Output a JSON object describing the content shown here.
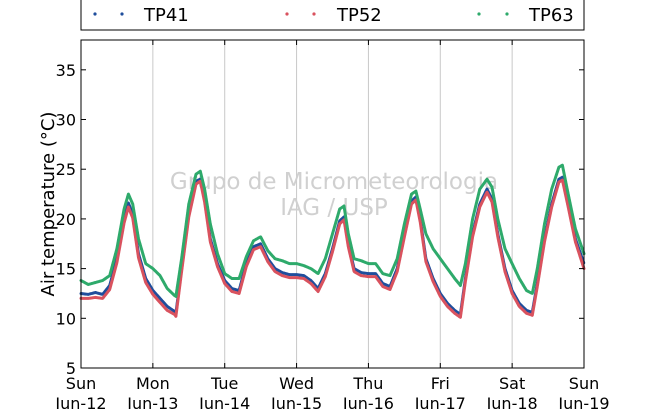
{
  "chart_data": {
    "type": "line",
    "ylabel": "Air temperature (°C)",
    "ylim": [
      5,
      38
    ],
    "yticks": [
      5,
      10,
      15,
      20,
      25,
      30,
      35
    ],
    "xlim": [
      0,
      7
    ],
    "xticks": [
      {
        "x": 0,
        "day": "Sun",
        "date": "Jun-12"
      },
      {
        "x": 1,
        "day": "Mon",
        "date": "Jun-13"
      },
      {
        "x": 2,
        "day": "Tue",
        "date": "Jun-14"
      },
      {
        "x": 3,
        "day": "Wed",
        "date": "Jun-15"
      },
      {
        "x": 4,
        "day": "Thu",
        "date": "Jun-16"
      },
      {
        "x": 5,
        "day": "Fri",
        "date": "Jun-17"
      },
      {
        "x": 6,
        "day": "Sat",
        "date": "Jun-18"
      },
      {
        "x": 7,
        "day": "Sun",
        "date": "Jun-19"
      }
    ],
    "grid": "vertical",
    "legend_position": "top",
    "watermark": [
      "Grupo de Micrometeorologia",
      "IAG / USP"
    ],
    "series": [
      {
        "name": "TP41",
        "color": "#1f4e9c",
        "points": [
          [
            0.0,
            12.5
          ],
          [
            0.1,
            12.4
          ],
          [
            0.2,
            12.6
          ],
          [
            0.3,
            12.4
          ],
          [
            0.4,
            13.3
          ],
          [
            0.5,
            16.0
          ],
          [
            0.6,
            20.0
          ],
          [
            0.66,
            21.6
          ],
          [
            0.72,
            20.5
          ],
          [
            0.8,
            16.5
          ],
          [
            0.9,
            14.0
          ],
          [
            1.0,
            12.8
          ],
          [
            1.1,
            12.0
          ],
          [
            1.2,
            11.2
          ],
          [
            1.3,
            10.7
          ],
          [
            1.32,
            10.5
          ],
          [
            1.4,
            15.0
          ],
          [
            1.5,
            20.5
          ],
          [
            1.6,
            23.8
          ],
          [
            1.66,
            24.0
          ],
          [
            1.72,
            22.0
          ],
          [
            1.8,
            18.0
          ],
          [
            1.9,
            15.5
          ],
          [
            2.0,
            13.8
          ],
          [
            2.1,
            13.0
          ],
          [
            2.2,
            12.8
          ],
          [
            2.3,
            15.5
          ],
          [
            2.4,
            17.2
          ],
          [
            2.5,
            17.5
          ],
          [
            2.6,
            16.0
          ],
          [
            2.7,
            15.0
          ],
          [
            2.8,
            14.6
          ],
          [
            2.9,
            14.4
          ],
          [
            3.0,
            14.4
          ],
          [
            3.1,
            14.3
          ],
          [
            3.2,
            13.8
          ],
          [
            3.3,
            13.0
          ],
          [
            3.4,
            14.5
          ],
          [
            3.5,
            17.0
          ],
          [
            3.6,
            19.8
          ],
          [
            3.66,
            20.2
          ],
          [
            3.72,
            17.5
          ],
          [
            3.8,
            15.0
          ],
          [
            3.9,
            14.6
          ],
          [
            4.0,
            14.5
          ],
          [
            4.1,
            14.5
          ],
          [
            4.2,
            13.5
          ],
          [
            4.3,
            13.2
          ],
          [
            4.4,
            15.0
          ],
          [
            4.5,
            18.5
          ],
          [
            4.6,
            21.8
          ],
          [
            4.66,
            22.2
          ],
          [
            4.72,
            20.0
          ],
          [
            4.8,
            16.0
          ],
          [
            4.9,
            14.0
          ],
          [
            5.0,
            12.5
          ],
          [
            5.1,
            11.5
          ],
          [
            5.2,
            10.8
          ],
          [
            5.28,
            10.4
          ],
          [
            5.35,
            14.0
          ],
          [
            5.45,
            18.5
          ],
          [
            5.55,
            21.5
          ],
          [
            5.65,
            23.0
          ],
          [
            5.72,
            22.0
          ],
          [
            5.8,
            18.5
          ],
          [
            5.9,
            15.0
          ],
          [
            6.0,
            12.8
          ],
          [
            6.1,
            11.5
          ],
          [
            6.2,
            10.8
          ],
          [
            6.28,
            10.6
          ],
          [
            6.35,
            13.5
          ],
          [
            6.45,
            18.0
          ],
          [
            6.55,
            21.5
          ],
          [
            6.65,
            24.0
          ],
          [
            6.7,
            24.2
          ],
          [
            6.78,
            21.5
          ],
          [
            6.88,
            18.0
          ],
          [
            7.0,
            15.5
          ]
        ]
      },
      {
        "name": "TP52",
        "color": "#d9525e",
        "points": [
          [
            0.0,
            12.0
          ],
          [
            0.1,
            12.0
          ],
          [
            0.2,
            12.1
          ],
          [
            0.3,
            12.0
          ],
          [
            0.4,
            12.9
          ],
          [
            0.5,
            15.6
          ],
          [
            0.6,
            19.6
          ],
          [
            0.66,
            21.2
          ],
          [
            0.72,
            20.1
          ],
          [
            0.8,
            16.1
          ],
          [
            0.9,
            13.6
          ],
          [
            1.0,
            12.4
          ],
          [
            1.1,
            11.6
          ],
          [
            1.2,
            10.8
          ],
          [
            1.3,
            10.4
          ],
          [
            1.32,
            10.2
          ],
          [
            1.4,
            14.7
          ],
          [
            1.5,
            20.2
          ],
          [
            1.6,
            23.5
          ],
          [
            1.66,
            23.8
          ],
          [
            1.72,
            21.7
          ],
          [
            1.8,
            17.7
          ],
          [
            1.9,
            15.2
          ],
          [
            2.0,
            13.5
          ],
          [
            2.1,
            12.7
          ],
          [
            2.2,
            12.5
          ],
          [
            2.3,
            15.2
          ],
          [
            2.4,
            16.9
          ],
          [
            2.5,
            17.2
          ],
          [
            2.6,
            15.7
          ],
          [
            2.7,
            14.7
          ],
          [
            2.8,
            14.3
          ],
          [
            2.9,
            14.1
          ],
          [
            3.0,
            14.1
          ],
          [
            3.1,
            14.0
          ],
          [
            3.2,
            13.5
          ],
          [
            3.3,
            12.7
          ],
          [
            3.4,
            14.2
          ],
          [
            3.5,
            16.7
          ],
          [
            3.6,
            19.5
          ],
          [
            3.66,
            19.9
          ],
          [
            3.72,
            17.2
          ],
          [
            3.8,
            14.7
          ],
          [
            3.9,
            14.3
          ],
          [
            4.0,
            14.2
          ],
          [
            4.1,
            14.2
          ],
          [
            4.2,
            13.2
          ],
          [
            4.3,
            12.9
          ],
          [
            4.4,
            14.7
          ],
          [
            4.5,
            18.2
          ],
          [
            4.6,
            21.5
          ],
          [
            4.66,
            21.9
          ],
          [
            4.72,
            19.7
          ],
          [
            4.8,
            15.7
          ],
          [
            4.9,
            13.7
          ],
          [
            5.0,
            12.2
          ],
          [
            5.1,
            11.2
          ],
          [
            5.2,
            10.5
          ],
          [
            5.28,
            10.1
          ],
          [
            5.35,
            13.7
          ],
          [
            5.45,
            18.2
          ],
          [
            5.55,
            21.2
          ],
          [
            5.65,
            22.7
          ],
          [
            5.72,
            21.7
          ],
          [
            5.8,
            18.2
          ],
          [
            5.9,
            14.7
          ],
          [
            6.0,
            12.5
          ],
          [
            6.1,
            11.2
          ],
          [
            6.2,
            10.5
          ],
          [
            6.28,
            10.3
          ],
          [
            6.35,
            13.2
          ],
          [
            6.45,
            17.7
          ],
          [
            6.55,
            21.2
          ],
          [
            6.65,
            23.7
          ],
          [
            6.7,
            23.9
          ],
          [
            6.78,
            21.2
          ],
          [
            6.88,
            17.7
          ],
          [
            7.0,
            15.0
          ]
        ]
      },
      {
        "name": "TP63",
        "color": "#2eaa6b",
        "points": [
          [
            0.0,
            13.8
          ],
          [
            0.1,
            13.4
          ],
          [
            0.2,
            13.6
          ],
          [
            0.3,
            13.8
          ],
          [
            0.4,
            14.3
          ],
          [
            0.5,
            17.0
          ],
          [
            0.6,
            21.0
          ],
          [
            0.66,
            22.5
          ],
          [
            0.72,
            21.5
          ],
          [
            0.8,
            18.0
          ],
          [
            0.9,
            15.5
          ],
          [
            1.0,
            15.0
          ],
          [
            1.1,
            14.3
          ],
          [
            1.2,
            13.0
          ],
          [
            1.3,
            12.3
          ],
          [
            1.32,
            12.2
          ],
          [
            1.4,
            16.0
          ],
          [
            1.5,
            21.5
          ],
          [
            1.6,
            24.5
          ],
          [
            1.66,
            24.8
          ],
          [
            1.72,
            23.0
          ],
          [
            1.8,
            19.5
          ],
          [
            1.9,
            16.5
          ],
          [
            2.0,
            14.5
          ],
          [
            2.1,
            14.0
          ],
          [
            2.2,
            14.0
          ],
          [
            2.3,
            16.2
          ],
          [
            2.4,
            17.8
          ],
          [
            2.5,
            18.2
          ],
          [
            2.6,
            16.8
          ],
          [
            2.7,
            16.0
          ],
          [
            2.8,
            15.8
          ],
          [
            2.9,
            15.5
          ],
          [
            3.0,
            15.5
          ],
          [
            3.1,
            15.3
          ],
          [
            3.2,
            15.0
          ],
          [
            3.3,
            14.5
          ],
          [
            3.4,
            16.0
          ],
          [
            3.5,
            18.5
          ],
          [
            3.6,
            21.0
          ],
          [
            3.66,
            21.3
          ],
          [
            3.72,
            18.5
          ],
          [
            3.8,
            16.0
          ],
          [
            3.9,
            15.8
          ],
          [
            4.0,
            15.5
          ],
          [
            4.1,
            15.5
          ],
          [
            4.2,
            14.5
          ],
          [
            4.3,
            14.3
          ],
          [
            4.4,
            16.0
          ],
          [
            4.5,
            19.5
          ],
          [
            4.6,
            22.5
          ],
          [
            4.66,
            22.8
          ],
          [
            4.72,
            21.0
          ],
          [
            4.8,
            18.5
          ],
          [
            4.9,
            17.0
          ],
          [
            5.0,
            16.0
          ],
          [
            5.1,
            15.0
          ],
          [
            5.2,
            14.0
          ],
          [
            5.28,
            13.3
          ],
          [
            5.35,
            15.5
          ],
          [
            5.45,
            20.0
          ],
          [
            5.55,
            23.0
          ],
          [
            5.65,
            24.0
          ],
          [
            5.72,
            23.2
          ],
          [
            5.8,
            20.0
          ],
          [
            5.9,
            17.0
          ],
          [
            6.0,
            15.5
          ],
          [
            6.1,
            14.0
          ],
          [
            6.2,
            12.8
          ],
          [
            6.28,
            12.5
          ],
          [
            6.35,
            15.0
          ],
          [
            6.45,
            19.5
          ],
          [
            6.55,
            23.0
          ],
          [
            6.65,
            25.2
          ],
          [
            6.7,
            25.4
          ],
          [
            6.78,
            22.5
          ],
          [
            6.88,
            19.0
          ],
          [
            7.0,
            16.5
          ]
        ]
      }
    ]
  }
}
